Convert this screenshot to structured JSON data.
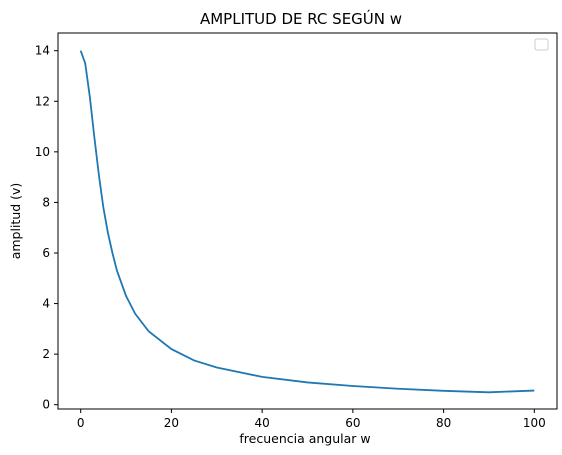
{
  "chart_data": {
    "type": "line",
    "title": "AMPLITUD DE RC SEGÚN w",
    "xlabel": "frecuencia angular w",
    "ylabel": "amplitud (v)",
    "xlim": [
      -5,
      105
    ],
    "ylim": [
      -0.17,
      14.7
    ],
    "xticks": [
      0,
      20,
      40,
      60,
      80,
      100
    ],
    "xtick_labels": [
      "0",
      "20",
      "40",
      "60",
      "80",
      "100"
    ],
    "yticks": [
      0,
      2,
      4,
      6,
      8,
      10,
      12,
      14
    ],
    "ytick_labels": [
      "0",
      "2",
      "4",
      "6",
      "8",
      "10",
      "12",
      "14"
    ],
    "grid": false,
    "legend": {
      "position": "top-right",
      "entries": []
    },
    "series": [
      {
        "color": "#1f77b4",
        "x": [
          0,
          1,
          2,
          3,
          4,
          5,
          6,
          7,
          8,
          10,
          12,
          15,
          20,
          25,
          30,
          40,
          50,
          60,
          70,
          80,
          90,
          100
        ],
        "y": [
          14.0,
          13.5,
          12.2,
          10.6,
          9.1,
          7.8,
          6.8,
          6.0,
          5.3,
          4.3,
          3.6,
          2.9,
          2.2,
          1.75,
          1.47,
          1.1,
          0.88,
          0.74,
          0.63,
          0.55,
          0.49,
          0.56
        ]
      }
    ]
  }
}
